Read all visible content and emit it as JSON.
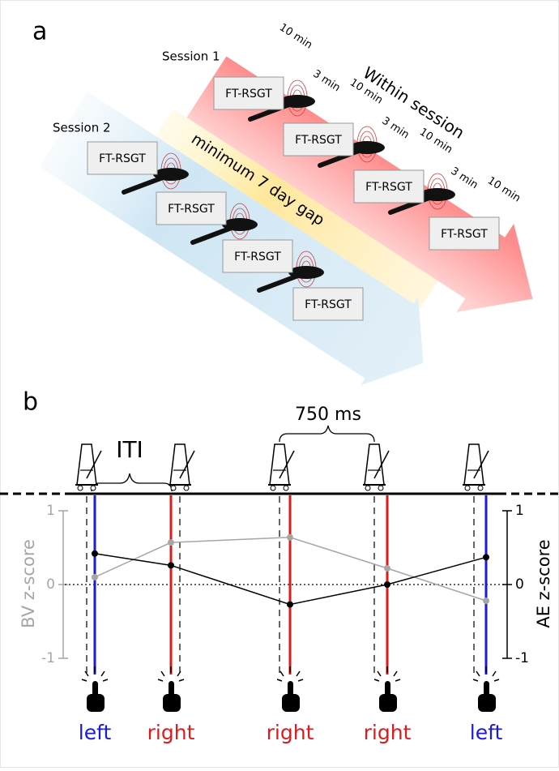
{
  "panel_a": {
    "label": "a",
    "session_1": "Session 1",
    "session_2": "Session 2",
    "within_session": "Within session",
    "gap": "minimum 7 day gap",
    "session_1_blocks": [
      "FT-RSGT",
      "FT-RSGT",
      "FT-RSGT",
      "FT-RSGT"
    ],
    "session_2_blocks": [
      "FT-RSGT",
      "FT-RSGT",
      "FT-RSGT",
      "FT-RSGT"
    ],
    "intervals": [
      "10 min",
      "3 min",
      "10 min",
      "3 min",
      "10 min",
      "3 min",
      "10 min"
    ]
  },
  "panel_b": {
    "label": "b",
    "iti": "ITI",
    "duration": "750 ms",
    "left_axis_label": "BV z-score",
    "right_axis_label": "AE z-score",
    "ylim": [
      -1,
      1
    ],
    "yticks": [
      -1,
      0,
      1
    ],
    "y2lim": [
      -1,
      1
    ],
    "y2ticks": [
      -1,
      0,
      1
    ],
    "taps": [
      {
        "hand": "left",
        "color": "#1a1ae0"
      },
      {
        "hand": "right",
        "color": "#e01a1a"
      },
      {
        "hand": "right",
        "color": "#e01a1a"
      },
      {
        "hand": "right",
        "color": "#e01a1a"
      },
      {
        "hand": "left",
        "color": "#1a1ae0"
      }
    ],
    "bv": {
      "color": "#a6a6a6",
      "values": [
        0.1,
        0.57,
        0.64,
        0.22,
        -0.22
      ]
    },
    "ae": {
      "color": "#000000",
      "values": [
        0.42,
        0.26,
        -0.27,
        0,
        0.37
      ]
    }
  }
}
